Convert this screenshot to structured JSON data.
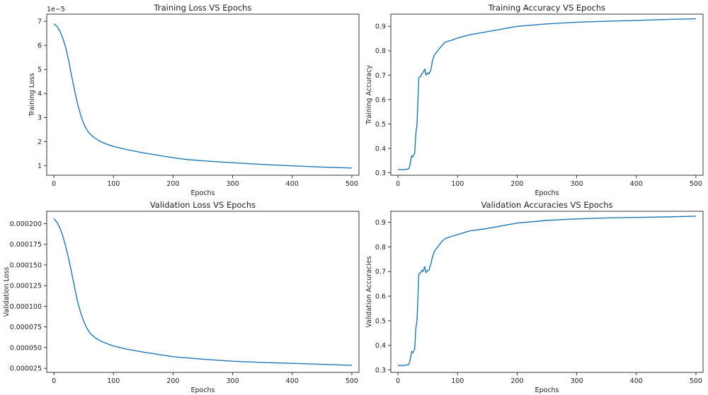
{
  "chart_data": [
    {
      "type": "line",
      "title": "Training Loss VS Epochs",
      "xlabel": "Epochs",
      "ylabel": "Training Loss",
      "offset_label": "1e−5",
      "xlim": [
        -12,
        512
      ],
      "ylim": [
        0.6,
        7.3
      ],
      "xticks": [
        0,
        100,
        200,
        300,
        400,
        500
      ],
      "yticks": [
        1,
        2,
        3,
        4,
        5,
        6,
        7
      ],
      "ytick_labels": [
        "1",
        "2",
        "3",
        "4",
        "5",
        "6",
        "7"
      ],
      "grid": false,
      "series": [
        {
          "color": "#1f77b4",
          "x": [
            0,
            5,
            10,
            15,
            20,
            25,
            30,
            35,
            40,
            45,
            50,
            55,
            60,
            65,
            70,
            75,
            80,
            90,
            100,
            120,
            150,
            200,
            225,
            250,
            300,
            350,
            400,
            450,
            500
          ],
          "y": [
            6.9,
            6.8,
            6.6,
            6.3,
            5.9,
            5.35,
            4.7,
            4.1,
            3.55,
            3.1,
            2.75,
            2.5,
            2.33,
            2.22,
            2.13,
            2.05,
            1.98,
            1.88,
            1.8,
            1.68,
            1.53,
            1.33,
            1.25,
            1.2,
            1.12,
            1.05,
            0.99,
            0.94,
            0.9
          ]
        }
      ]
    },
    {
      "type": "line",
      "title": "Training Accuracy VS Epochs",
      "xlabel": "Epochs",
      "ylabel": "Training Accuracy",
      "xlim": [
        -12,
        512
      ],
      "ylim": [
        0.29,
        0.95
      ],
      "xticks": [
        0,
        100,
        200,
        300,
        400,
        500
      ],
      "yticks": [
        0.3,
        0.4,
        0.5,
        0.6,
        0.7,
        0.8,
        0.9
      ],
      "ytick_labels": [
        "0.3",
        "0.4",
        "0.5",
        "0.6",
        "0.7",
        "0.8",
        "0.9"
      ],
      "grid": false,
      "series": [
        {
          "color": "#1f77b4",
          "x": [
            0,
            10,
            18,
            20,
            23,
            25,
            28,
            30,
            32,
            35,
            38,
            40,
            42,
            45,
            47,
            50,
            52,
            55,
            58,
            60,
            62,
            65,
            70,
            75,
            80,
            90,
            100,
            120,
            150,
            200,
            250,
            300,
            350,
            400,
            450,
            500
          ],
          "y": [
            0.313,
            0.313,
            0.316,
            0.33,
            0.37,
            0.365,
            0.38,
            0.46,
            0.5,
            0.69,
            0.695,
            0.705,
            0.71,
            0.725,
            0.7,
            0.71,
            0.705,
            0.72,
            0.76,
            0.775,
            0.785,
            0.795,
            0.81,
            0.825,
            0.836,
            0.843,
            0.852,
            0.865,
            0.878,
            0.9,
            0.91,
            0.917,
            0.921,
            0.924,
            0.928,
            0.931
          ]
        }
      ]
    },
    {
      "type": "line",
      "title": "Validation Loss VS Epochs",
      "xlabel": "Epochs",
      "ylabel": "Validation Loss",
      "xlim": [
        -12,
        512
      ],
      "ylim": [
        2e-05,
        0.000215
      ],
      "xticks": [
        0,
        100,
        200,
        300,
        400,
        500
      ],
      "yticks": [
        2.5e-05,
        5e-05,
        7.5e-05,
        0.0001,
        0.000125,
        0.00015,
        0.000175,
        0.0002
      ],
      "ytick_labels": [
        "0.000025",
        "0.000050",
        "0.000075",
        "0.000100",
        "0.000125",
        "0.000150",
        "0.000175",
        "0.000200"
      ],
      "grid": false,
      "series": [
        {
          "color": "#1f77b4",
          "x": [
            0,
            5,
            10,
            15,
            20,
            25,
            30,
            35,
            40,
            45,
            50,
            55,
            60,
            65,
            70,
            75,
            80,
            90,
            100,
            120,
            150,
            200,
            225,
            250,
            300,
            350,
            400,
            450,
            500
          ],
          "y": [
            0.000206,
            0.000202,
            0.000195,
            0.000185,
            0.000172,
            0.000157,
            0.00014,
            0.000122,
            0.000105,
            9.2e-05,
            8.2e-05,
            7.4e-05,
            6.8e-05,
            6.45e-05,
            6.15e-05,
            5.95e-05,
            5.75e-05,
            5.45e-05,
            5.2e-05,
            4.85e-05,
            4.45e-05,
            3.9e-05,
            3.75e-05,
            3.6e-05,
            3.35e-05,
            3.2e-05,
            3.1e-05,
            2.98e-05,
            2.85e-05
          ]
        }
      ]
    },
    {
      "type": "line",
      "title": "Validation Accuracies VS Epochs",
      "xlabel": "Epochs",
      "ylabel": "Validation Accuracies",
      "xlim": [
        -12,
        512
      ],
      "ylim": [
        0.29,
        0.945
      ],
      "xticks": [
        0,
        100,
        200,
        300,
        400,
        500
      ],
      "yticks": [
        0.3,
        0.4,
        0.5,
        0.6,
        0.7,
        0.8,
        0.9
      ],
      "ytick_labels": [
        "0.3",
        "0.4",
        "0.5",
        "0.6",
        "0.7",
        "0.8",
        "0.9"
      ],
      "grid": false,
      "series": [
        {
          "color": "#1f77b4",
          "x": [
            0,
            10,
            18,
            20,
            23,
            25,
            28,
            30,
            32,
            35,
            38,
            40,
            42,
            45,
            47,
            50,
            52,
            55,
            58,
            60,
            62,
            65,
            70,
            75,
            80,
            90,
            100,
            120,
            150,
            200,
            250,
            300,
            350,
            400,
            450,
            500
          ],
          "y": [
            0.318,
            0.318,
            0.322,
            0.335,
            0.375,
            0.37,
            0.385,
            0.47,
            0.5,
            0.69,
            0.695,
            0.705,
            0.7,
            0.72,
            0.695,
            0.705,
            0.705,
            0.73,
            0.76,
            0.775,
            0.785,
            0.795,
            0.81,
            0.825,
            0.835,
            0.843,
            0.85,
            0.865,
            0.875,
            0.897,
            0.908,
            0.914,
            0.918,
            0.92,
            0.922,
            0.925
          ]
        }
      ]
    }
  ]
}
